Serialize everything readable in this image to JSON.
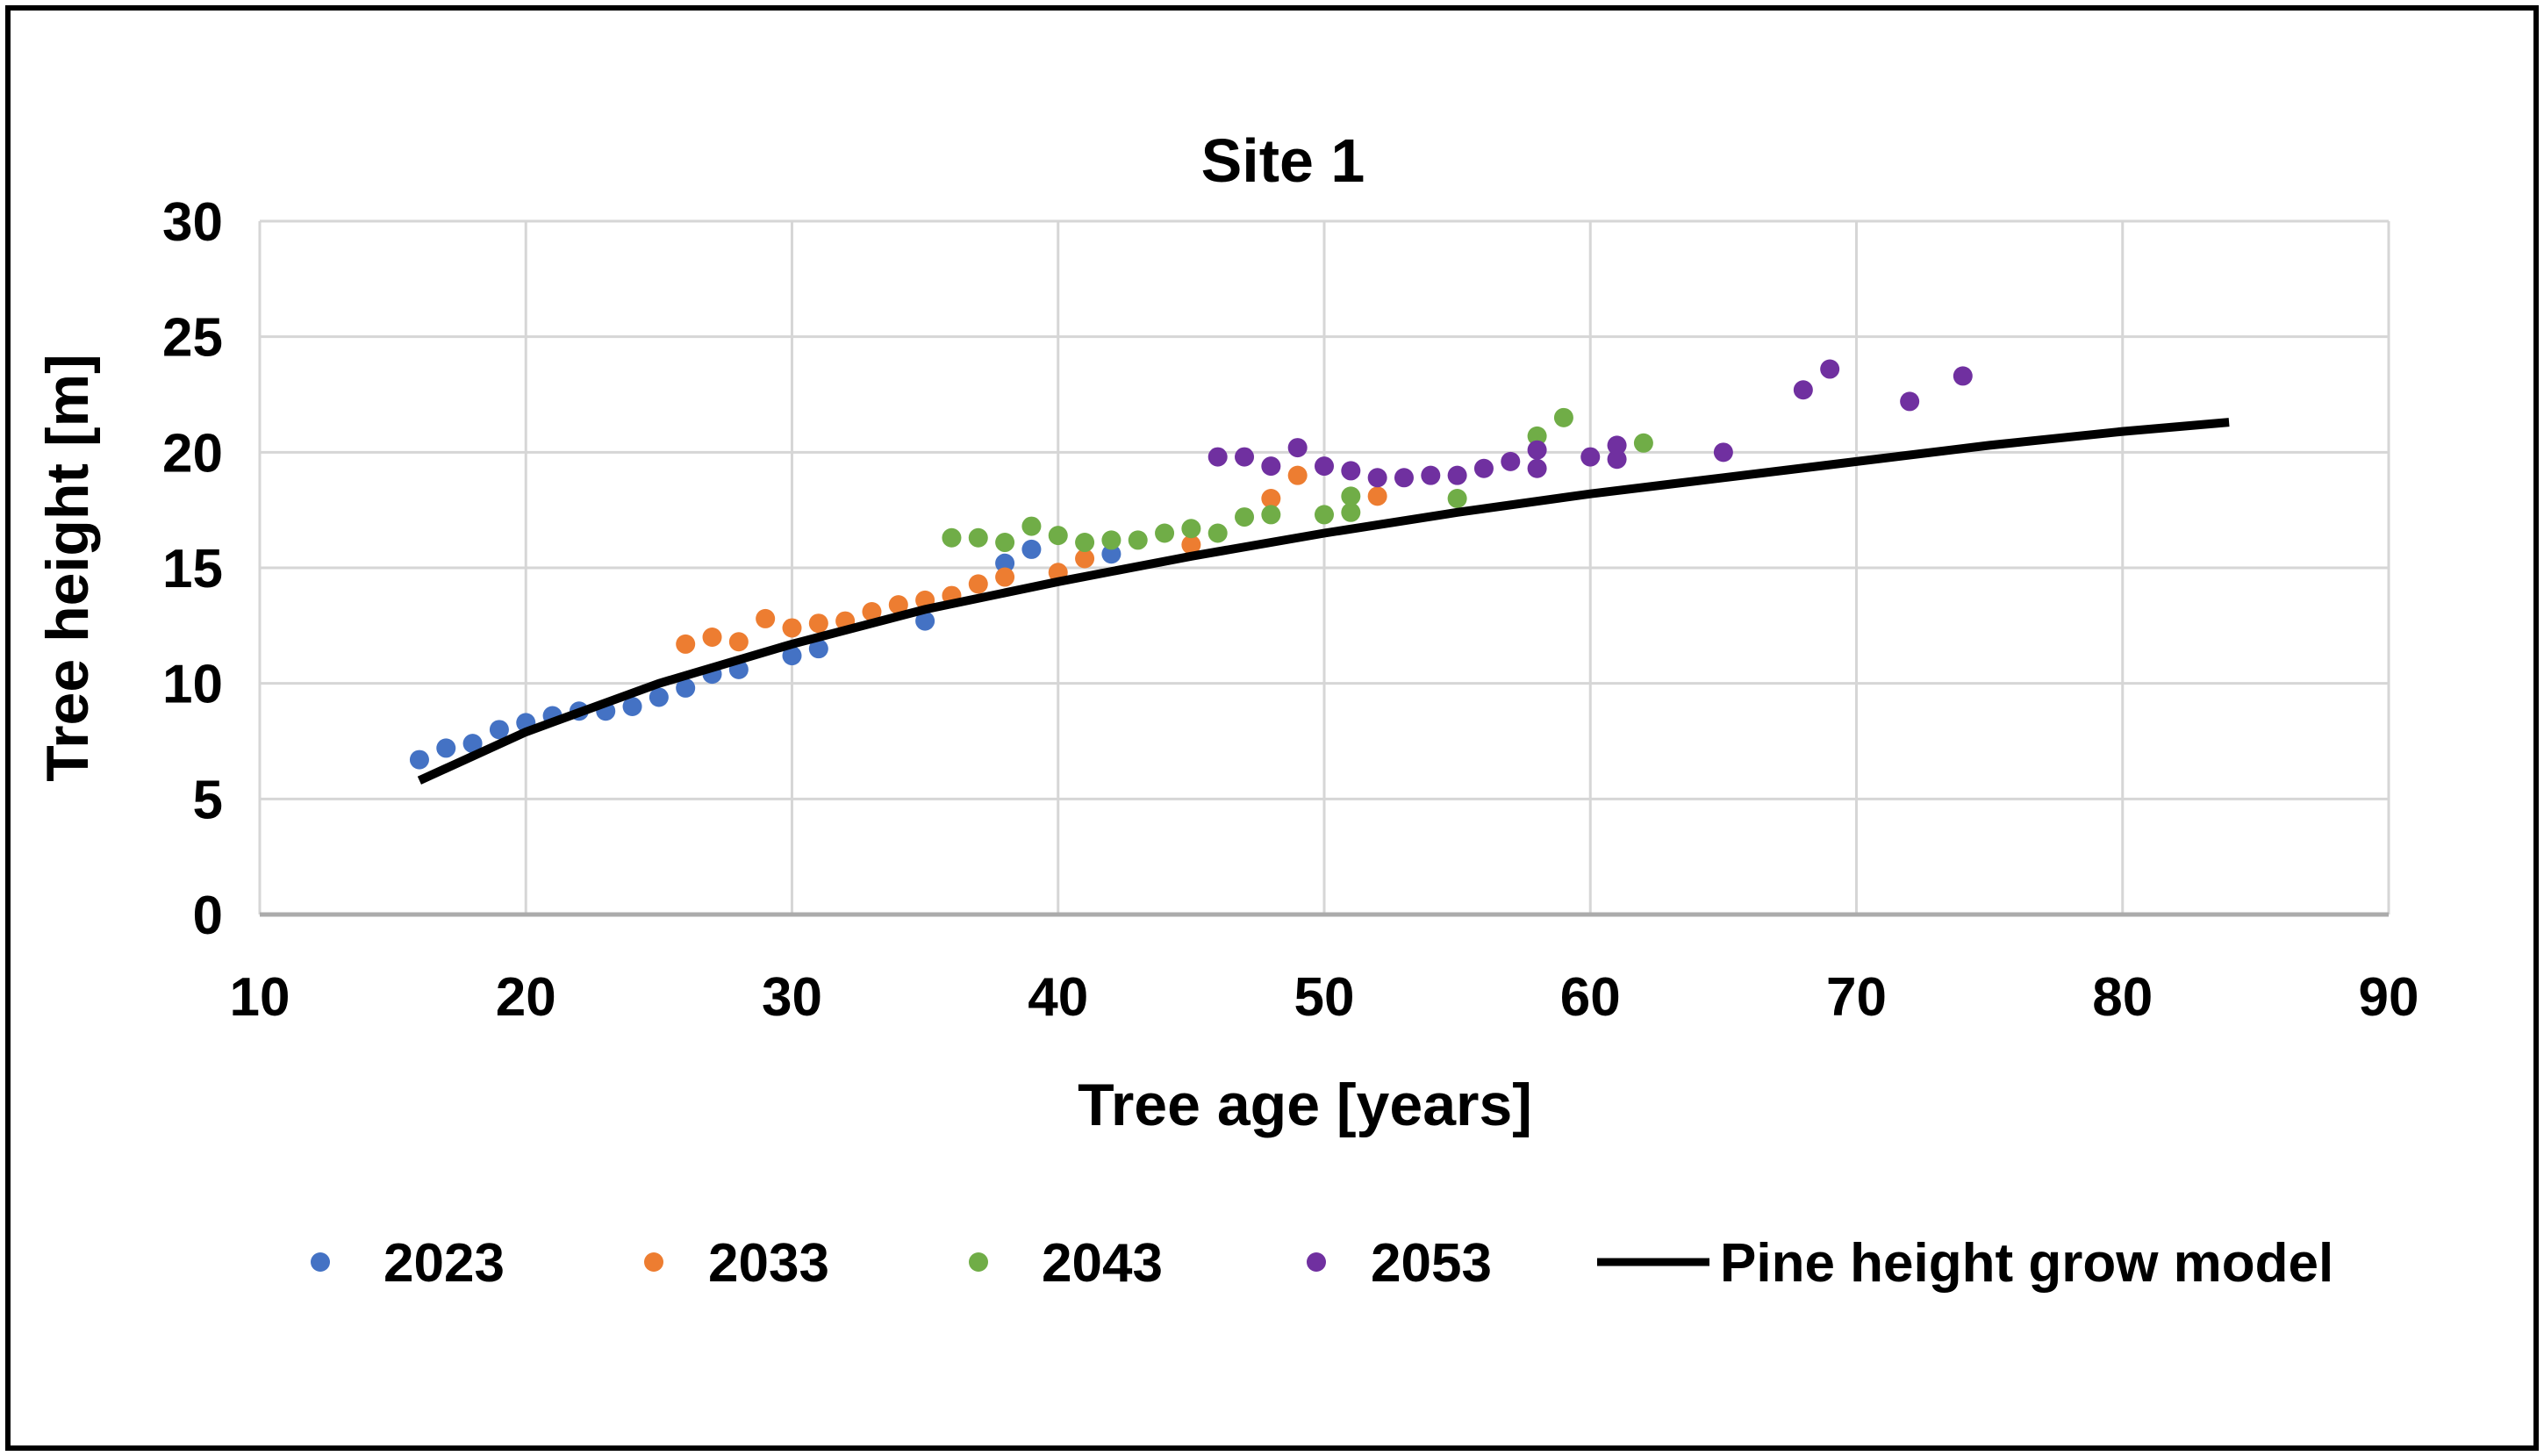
{
  "window": {
    "background": "#FFFFFF",
    "border_color": "#000000"
  },
  "chart_data": {
    "type": "scatter",
    "title": "Site 1",
    "xlabel": "Tree age [years]",
    "ylabel": "Tree height [m]",
    "xlim": [
      10,
      90
    ],
    "ylim": [
      0,
      30
    ],
    "x_ticks": [
      10,
      20,
      30,
      40,
      50,
      60,
      70,
      80,
      90
    ],
    "y_ticks": [
      0,
      5,
      10,
      15,
      20,
      25,
      30
    ],
    "grid": true,
    "grid_color": "#D6D6D6",
    "axis_line_color": "#ABABAB",
    "legend_position": "bottom",
    "series": [
      {
        "name": "2023",
        "color": "#4472C4",
        "points": [
          [
            16,
            6.7
          ],
          [
            17,
            7.2
          ],
          [
            18,
            7.4
          ],
          [
            19,
            8.0
          ],
          [
            20,
            8.3
          ],
          [
            21,
            8.6
          ],
          [
            22,
            8.8
          ],
          [
            23,
            8.8
          ],
          [
            24,
            9.0
          ],
          [
            25,
            9.4
          ],
          [
            26,
            9.8
          ],
          [
            27,
            10.4
          ],
          [
            28,
            10.6
          ],
          [
            30,
            11.2
          ],
          [
            31,
            11.5
          ],
          [
            35,
            12.7
          ],
          [
            38,
            15.2
          ],
          [
            39,
            15.8
          ],
          [
            42,
            15.6
          ]
        ]
      },
      {
        "name": "2033",
        "color": "#ED7D31",
        "points": [
          [
            26,
            11.7
          ],
          [
            27,
            12.0
          ],
          [
            28,
            11.8
          ],
          [
            29,
            12.8
          ],
          [
            30,
            12.4
          ],
          [
            31,
            12.6
          ],
          [
            32,
            12.7
          ],
          [
            33,
            13.1
          ],
          [
            34,
            13.4
          ],
          [
            35,
            13.6
          ],
          [
            36,
            13.8
          ],
          [
            37,
            14.3
          ],
          [
            38,
            14.6
          ],
          [
            40,
            14.8
          ],
          [
            41,
            15.4
          ],
          [
            45,
            16.0
          ],
          [
            48,
            18.0
          ],
          [
            49,
            19.0
          ],
          [
            52,
            18.1
          ]
        ]
      },
      {
        "name": "2043",
        "color": "#70AD47",
        "points": [
          [
            36,
            16.3
          ],
          [
            37,
            16.3
          ],
          [
            38,
            16.1
          ],
          [
            39,
            16.8
          ],
          [
            40,
            16.4
          ],
          [
            41,
            16.1
          ],
          [
            42,
            16.2
          ],
          [
            43,
            16.2
          ],
          [
            44,
            16.5
          ],
          [
            45,
            16.7
          ],
          [
            46,
            16.5
          ],
          [
            47,
            17.2
          ],
          [
            48,
            17.3
          ],
          [
            50,
            17.3
          ],
          [
            51,
            17.4
          ],
          [
            51,
            18.1
          ],
          [
            55,
            18.0
          ],
          [
            58,
            20.7
          ],
          [
            59,
            21.5
          ],
          [
            62,
            20.4
          ]
        ]
      },
      {
        "name": "2053",
        "color": "#7030A0",
        "points": [
          [
            46,
            19.8
          ],
          [
            47,
            19.8
          ],
          [
            48,
            19.4
          ],
          [
            49,
            20.2
          ],
          [
            50,
            19.4
          ],
          [
            51,
            19.2
          ],
          [
            52,
            18.9
          ],
          [
            53,
            18.9
          ],
          [
            54,
            19.0
          ],
          [
            55,
            19.0
          ],
          [
            56,
            19.3
          ],
          [
            57,
            19.6
          ],
          [
            58,
            19.3
          ],
          [
            58,
            20.1
          ],
          [
            60,
            19.8
          ],
          [
            61,
            19.7
          ],
          [
            61,
            20.3
          ],
          [
            65,
            20.0
          ],
          [
            68,
            22.7
          ],
          [
            69,
            23.6
          ],
          [
            72,
            22.2
          ],
          [
            74,
            23.3
          ]
        ]
      }
    ],
    "model_line": {
      "name": "Pine height grow model",
      "color": "#000000",
      "points": [
        [
          16,
          5.8
        ],
        [
          20,
          7.9
        ],
        [
          25,
          10.0
        ],
        [
          30,
          11.7
        ],
        [
          35,
          13.2
        ],
        [
          40,
          14.4
        ],
        [
          45,
          15.5
        ],
        [
          50,
          16.5
        ],
        [
          55,
          17.4
        ],
        [
          60,
          18.2
        ],
        [
          65,
          18.9
        ],
        [
          70,
          19.6
        ],
        [
          75,
          20.3
        ],
        [
          80,
          20.9
        ],
        [
          84,
          21.3
        ]
      ]
    }
  }
}
